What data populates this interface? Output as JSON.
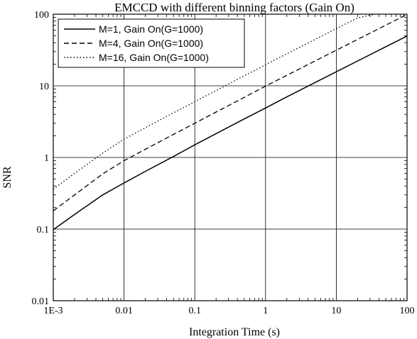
{
  "chart_data": {
    "type": "line",
    "title": "EMCCD with different binning factors (Gain On)",
    "xlabel": "Integration Time (s)",
    "ylabel": "SNR",
    "xscale": "log",
    "yscale": "log",
    "xlim": [
      0.001,
      100
    ],
    "ylim": [
      0.01,
      100
    ],
    "grid": true,
    "legend_position": "top-left",
    "x_tick_labels": [
      "1E-3",
      "0.01",
      "0.1",
      "1",
      "10",
      "100"
    ],
    "y_tick_labels": [
      "0.01",
      "0.1",
      "1",
      "10",
      "100"
    ],
    "series": [
      {
        "name": "M=1, Gain On(G=1000)",
        "style": "solid",
        "x": [
          0.001,
          0.002,
          0.005,
          0.01,
          0.02,
          0.05,
          0.1,
          0.2,
          0.5,
          1,
          2,
          5,
          10,
          20,
          50,
          100
        ],
        "y": [
          0.098,
          0.16,
          0.3,
          0.44,
          0.64,
          1.03,
          1.5,
          2.15,
          3.45,
          4.9,
          7.0,
          11.1,
          15.7,
          22.2,
          35.1,
          49.6
        ]
      },
      {
        "name": "M=4, Gain On(G=1000)",
        "style": "dashed",
        "x": [
          0.001,
          0.002,
          0.005,
          0.01,
          0.02,
          0.05,
          0.1,
          0.2,
          0.5,
          1,
          2,
          5,
          10,
          20,
          50,
          100
        ],
        "y": [
          0.18,
          0.3,
          0.59,
          0.9,
          1.3,
          2.1,
          3.0,
          4.3,
          6.9,
          9.9,
          14.0,
          22.2,
          31.4,
          44.4,
          70.2,
          99.3
        ]
      },
      {
        "name": "M=16, Gain On(G=1000)",
        "style": "dotted",
        "x": [
          0.001,
          0.002,
          0.005,
          0.01,
          0.02,
          0.05,
          0.1,
          0.2,
          0.5,
          1,
          2,
          5,
          10,
          20,
          35
        ],
        "y": [
          0.36,
          0.6,
          1.15,
          1.8,
          2.6,
          4.2,
          6.0,
          8.6,
          13.8,
          19.7,
          28.0,
          44.4,
          62.8,
          88.8,
          100
        ]
      }
    ]
  }
}
